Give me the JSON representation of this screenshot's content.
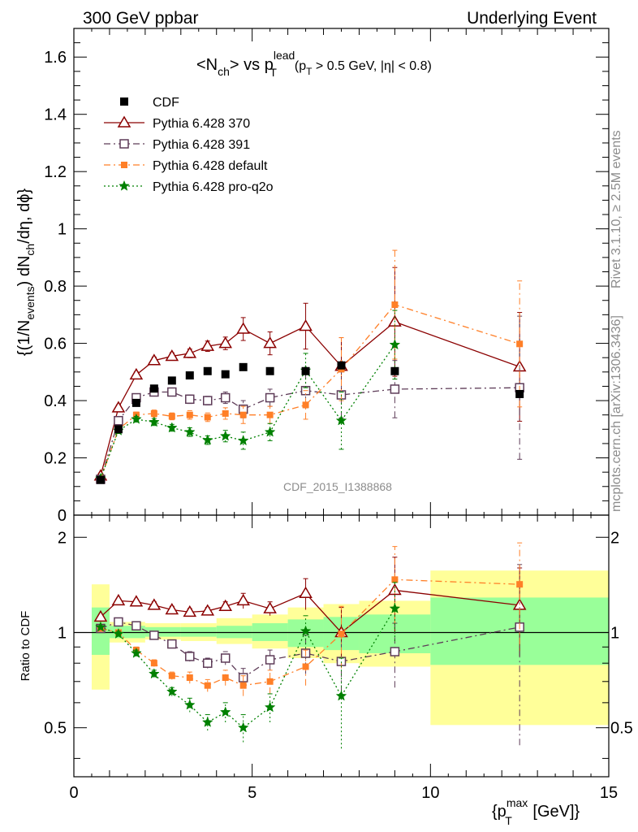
{
  "header": {
    "left": "300 GeV ppbar",
    "right": "Underlying Event"
  },
  "side_labels": {
    "rivet": "Rivet 3.1.10, ≥ 2.5M events",
    "mcplots": "mcplots.cern.ch [arXiv:1306.3436]"
  },
  "chart_data": {
    "type": "scatter",
    "title": "<Nch> vs pT lead (pT > 0.5 GeV, |η| < 0.8)",
    "title_parts": {
      "main": "<N",
      "sub1": "ch",
      "mid": "> vs p",
      "sup": "lead",
      "sub2": "T",
      "cut_p": "(p",
      "cut_sub": "T",
      "cut_rest": " > 0.5 GeV, |η| < 0.8)"
    },
    "analysis_id": "CDF_2015_I1388868",
    "ylabel": "{(1/Nevents) dNch/dη, dϕ}",
    "ylabel_parts": {
      "a": "{(1/N",
      "a_sub": "events",
      "b": ") dN",
      "b_sub": "ch",
      "c": "/dη, dϕ}"
    },
    "xlabel": "{pT max [GeV]}",
    "xlabel_parts": {
      "a": "{p",
      "a_sup": "max",
      "a_sub": "T",
      "b": " [GeV]}"
    },
    "ratio_ylabel": "Ratio to CDF",
    "xlim": [
      0,
      15
    ],
    "ylim": [
      0,
      1.7
    ],
    "ratio_ylim": [
      0.35,
      2.35
    ],
    "x_ticks": [
      "0",
      "5",
      "10",
      "15"
    ],
    "y_ticks": [
      "0",
      "0.2",
      "0.4",
      "0.6",
      "0.8",
      "1",
      "1.2",
      "1.4",
      "1.6"
    ],
    "ratio_ticks": [
      "0.5",
      "1",
      "2"
    ],
    "legend_position": "top-left",
    "x": [
      0.75,
      1.25,
      1.75,
      2.25,
      2.75,
      3.25,
      3.75,
      4.25,
      4.75,
      5.5,
      6.5,
      7.5,
      9.0,
      12.5
    ],
    "reference": {
      "name": "CDF",
      "color": "#000000",
      "values": [
        0.123,
        0.3,
        0.392,
        0.442,
        0.47,
        0.488,
        0.503,
        0.492,
        0.517,
        0.503,
        0.503,
        0.523,
        0.503,
        0.423
      ],
      "band_inner": [
        [
          0.5,
          1.0,
          0.85,
          1.2
        ],
        [
          1.0,
          2.0,
          0.96,
          1.05
        ],
        [
          2.0,
          3.0,
          0.97,
          1.04
        ],
        [
          3.0,
          4.0,
          0.97,
          1.04
        ],
        [
          4.0,
          5.0,
          0.96,
          1.05
        ],
        [
          5.0,
          6.0,
          0.94,
          1.07
        ],
        [
          6.0,
          7.0,
          0.9,
          1.1
        ],
        [
          7.0,
          8.0,
          0.88,
          1.12
        ],
        [
          8.0,
          10.0,
          0.86,
          1.14
        ],
        [
          10.0,
          15.0,
          0.79,
          1.29
        ]
      ],
      "band_outer": [
        [
          0.5,
          1.0,
          0.66,
          1.42
        ],
        [
          1.0,
          2.0,
          0.93,
          1.08
        ],
        [
          2.0,
          3.0,
          0.95,
          1.07
        ],
        [
          3.0,
          4.0,
          0.94,
          1.07
        ],
        [
          4.0,
          5.0,
          0.92,
          1.11
        ],
        [
          5.0,
          6.0,
          0.89,
          1.14
        ],
        [
          6.0,
          7.0,
          0.83,
          1.2
        ],
        [
          7.0,
          8.0,
          0.8,
          1.23
        ],
        [
          8.0,
          10.0,
          0.78,
          1.26
        ],
        [
          10.0,
          15.0,
          0.51,
          1.57
        ]
      ]
    },
    "series": [
      {
        "name": "Pythia 6.428 370",
        "color": "#8b0000",
        "marker": "triangle-open",
        "line": "solid",
        "values": [
          0.137,
          0.375,
          0.49,
          0.54,
          0.555,
          0.565,
          0.59,
          0.6,
          0.65,
          0.6,
          0.66,
          0.52,
          0.675,
          0.518
        ],
        "errors": [
          0.005,
          0.01,
          0.01,
          0.012,
          0.012,
          0.015,
          0.018,
          0.022,
          0.04,
          0.04,
          0.08,
          0.1,
          0.19,
          0.19
        ],
        "ratio": [
          1.12,
          1.26,
          1.25,
          1.22,
          1.18,
          1.16,
          1.17,
          1.21,
          1.26,
          1.19,
          1.33,
          1.0,
          1.36,
          1.22
        ],
        "ratio_errors": [
          0.01,
          0.02,
          0.02,
          0.03,
          0.03,
          0.03,
          0.03,
          0.04,
          0.07,
          0.06,
          0.15,
          0.2,
          0.37,
          0.38
        ]
      },
      {
        "name": "Pythia 6.428 391",
        "color": "#5e3c58",
        "marker": "square-open",
        "line": "dash-dot",
        "values": [
          0.125,
          0.33,
          0.41,
          0.43,
          0.43,
          0.405,
          0.4,
          0.41,
          0.37,
          0.41,
          0.435,
          0.42,
          0.44,
          0.445
        ],
        "errors": [
          0.005,
          0.01,
          0.01,
          0.012,
          0.012,
          0.015,
          0.015,
          0.02,
          0.03,
          0.03,
          0.06,
          0.08,
          0.1,
          0.25
        ],
        "ratio": [
          1.03,
          1.08,
          1.05,
          0.98,
          0.92,
          0.84,
          0.8,
          0.83,
          0.72,
          0.82,
          0.86,
          0.81,
          0.87,
          1.04
        ],
        "ratio_errors": [
          0.01,
          0.02,
          0.02,
          0.02,
          0.02,
          0.03,
          0.03,
          0.04,
          0.05,
          0.06,
          0.12,
          0.16,
          0.2,
          0.6
        ]
      },
      {
        "name": "Pythia 6.428 default",
        "color": "#ff7f27",
        "marker": "square-filled",
        "line": "dash-dot",
        "values": [
          0.125,
          0.3,
          0.35,
          0.355,
          0.345,
          0.35,
          0.342,
          0.355,
          0.35,
          0.35,
          0.385,
          0.51,
          0.735,
          0.598
        ],
        "errors": [
          0.005,
          0.01,
          0.01,
          0.012,
          0.012,
          0.015,
          0.015,
          0.02,
          0.03,
          0.03,
          0.05,
          0.11,
          0.19,
          0.22
        ],
        "ratio": [
          1.03,
          1.0,
          0.88,
          0.8,
          0.73,
          0.72,
          0.68,
          0.72,
          0.68,
          0.7,
          0.78,
          0.99,
          1.47,
          1.42
        ],
        "ratio_errors": [
          0.01,
          0.02,
          0.02,
          0.02,
          0.02,
          0.03,
          0.03,
          0.04,
          0.05,
          0.06,
          0.1,
          0.22,
          0.4,
          0.5
        ]
      },
      {
        "name": "Pythia 6.428 pro-q2o",
        "color": "#008000",
        "marker": "star",
        "line": "dotted",
        "values": [
          0.128,
          0.295,
          0.335,
          0.325,
          0.305,
          0.29,
          0.262,
          0.276,
          0.26,
          0.29,
          0.505,
          0.33,
          0.595,
          null
        ],
        "errors": [
          0.005,
          0.01,
          0.01,
          0.012,
          0.012,
          0.015,
          0.015,
          0.02,
          0.03,
          0.03,
          0.06,
          0.1,
          0.12,
          null
        ],
        "ratio": [
          1.04,
          0.99,
          0.86,
          0.74,
          0.65,
          0.59,
          0.52,
          0.56,
          0.5,
          0.58,
          1.01,
          0.63,
          1.19,
          null
        ],
        "ratio_errors": [
          0.01,
          0.02,
          0.02,
          0.02,
          0.02,
          0.03,
          0.03,
          0.04,
          0.05,
          0.06,
          0.12,
          0.2,
          0.25,
          null
        ]
      }
    ]
  }
}
